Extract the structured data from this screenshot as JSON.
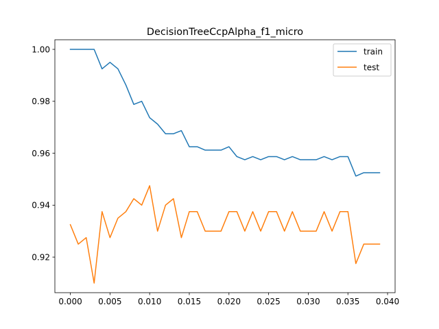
{
  "chart_data": {
    "type": "line",
    "title": "DecisionTreeCcpAlpha_f1_micro",
    "xlabel": "",
    "ylabel": "",
    "xlim": [
      -0.00195,
      0.04095
    ],
    "ylim": [
      0.9063,
      1.0037
    ],
    "xticks": [
      0.0,
      0.005,
      0.01,
      0.015,
      0.02,
      0.025,
      0.03,
      0.035,
      0.04
    ],
    "xtick_labels": [
      "0.000",
      "0.005",
      "0.010",
      "0.015",
      "0.020",
      "0.025",
      "0.030",
      "0.035",
      "0.040"
    ],
    "yticks": [
      0.92,
      0.94,
      0.96,
      0.98,
      1.0
    ],
    "ytick_labels": [
      "0.92",
      "0.94",
      "0.96",
      "0.98",
      "1.00"
    ],
    "grid": false,
    "legend": "top-right",
    "x": [
      0.0,
      0.001,
      0.002,
      0.003,
      0.004,
      0.005,
      0.006,
      0.007,
      0.008,
      0.009,
      0.01,
      0.011,
      0.012,
      0.013,
      0.014,
      0.015,
      0.016,
      0.017,
      0.018,
      0.019,
      0.02,
      0.021,
      0.022,
      0.023,
      0.024,
      0.025,
      0.026,
      0.027,
      0.028,
      0.029,
      0.03,
      0.031,
      0.032,
      0.033,
      0.034,
      0.035,
      0.036,
      0.037,
      0.038,
      0.039
    ],
    "series": [
      {
        "name": "train",
        "color": "#1f77b4",
        "values": [
          1.0,
          1.0,
          1.0,
          1.0,
          0.9925,
          0.995,
          0.9925,
          0.9863,
          0.9788,
          0.98,
          0.9737,
          0.9712,
          0.9675,
          0.9675,
          0.9687,
          0.9625,
          0.9625,
          0.9612,
          0.9612,
          0.9612,
          0.9625,
          0.9587,
          0.9575,
          0.9587,
          0.9575,
          0.9587,
          0.9587,
          0.9575,
          0.9587,
          0.9575,
          0.9575,
          0.9575,
          0.9587,
          0.9575,
          0.9587,
          0.9587,
          0.9512,
          0.9525,
          0.9525,
          0.9525
        ]
      },
      {
        "name": "test",
        "color": "#ff7f0e",
        "values": [
          0.9325,
          0.925,
          0.9275,
          0.91,
          0.9375,
          0.9275,
          0.935,
          0.9375,
          0.9425,
          0.94,
          0.9475,
          0.93,
          0.94,
          0.9425,
          0.9275,
          0.9375,
          0.9375,
          0.93,
          0.93,
          0.93,
          0.9375,
          0.9375,
          0.93,
          0.9375,
          0.93,
          0.9375,
          0.9375,
          0.93,
          0.9375,
          0.93,
          0.93,
          0.93,
          0.9375,
          0.93,
          0.9375,
          0.9375,
          0.9175,
          0.925,
          0.925,
          0.925
        ]
      }
    ]
  }
}
